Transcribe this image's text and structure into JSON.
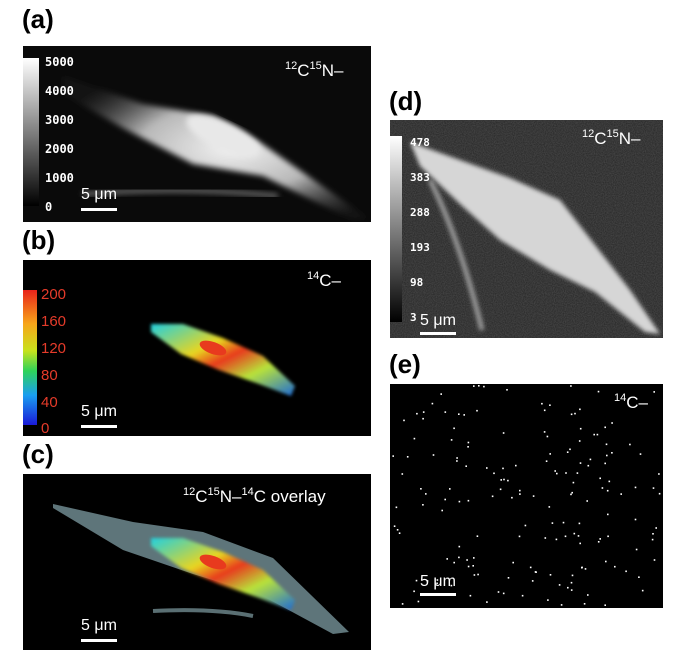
{
  "figure": {
    "panels": {
      "a": {
        "letter": "(a)",
        "ion_label": {
          "pre1": "12",
          "mid1": "C",
          "pre2": "15",
          "mid2": "N–"
        },
        "scale_ticks": [
          "5000",
          "4000",
          "3000",
          "2000",
          "1000",
          "0"
        ],
        "scalebar": "5 μm"
      },
      "b": {
        "letter": "(b)",
        "ion_label": {
          "pre1": "14",
          "mid1": "C–"
        },
        "scale_ticks": [
          "200",
          "160",
          "120",
          "80",
          "40",
          "0"
        ],
        "scalebar": "5 μm"
      },
      "c": {
        "letter": "(c)",
        "ion_label": {
          "pre1": "12",
          "mid1": "C",
          "pre2": "15",
          "mid2": "N–",
          "pre3": "14",
          "mid3": "C overlay"
        },
        "scalebar": "5 μm"
      },
      "d": {
        "letter": "(d)",
        "ion_label": {
          "pre1": "12",
          "mid1": "C",
          "pre2": "15",
          "mid2": "N–"
        },
        "scale_ticks": [
          "478",
          "383",
          "288",
          "193",
          "98",
          "3"
        ],
        "scalebar": "5 μm"
      },
      "e": {
        "letter": "(e)",
        "ion_label": {
          "pre1": "14",
          "mid1": "C–"
        },
        "scalebar": "5 μm"
      }
    },
    "colors": {
      "background": "#000000",
      "label_text": "#ffffff",
      "colorbar_tick_text": "#e53b2a"
    }
  }
}
